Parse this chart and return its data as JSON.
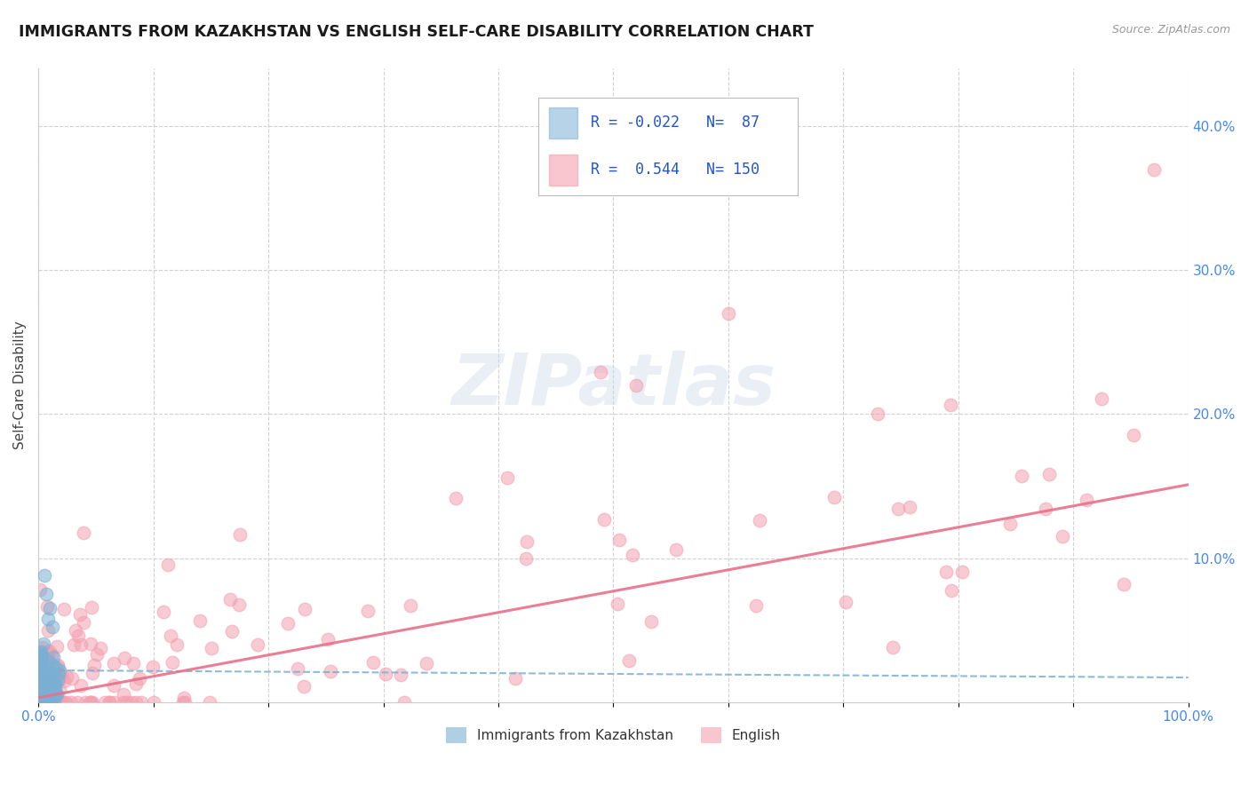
{
  "title": "IMMIGRANTS FROM KAZAKHSTAN VS ENGLISH SELF-CARE DISABILITY CORRELATION CHART",
  "source": "Source: ZipAtlas.com",
  "ylabel": "Self-Care Disability",
  "xlim": [
    0,
    1.0
  ],
  "ylim": [
    0,
    0.44
  ],
  "xticks": [
    0.0,
    0.1,
    0.2,
    0.3,
    0.4,
    0.5,
    0.6,
    0.7,
    0.8,
    0.9,
    1.0
  ],
  "xticklabels": [
    "0.0%",
    "",
    "",
    "",
    "",
    "",
    "",
    "",
    "",
    "",
    "100.0%"
  ],
  "yticks": [
    0.0,
    0.1,
    0.2,
    0.3,
    0.4
  ],
  "yticklabels_right": [
    "",
    "10.0%",
    "20.0%",
    "30.0%",
    "40.0%"
  ],
  "r1": -0.022,
  "n1": 87,
  "r2": 0.544,
  "n2": 150,
  "blue_color": "#7BAFD4",
  "pink_color": "#F4A0B0",
  "blue_line_color": "#7BAFD4",
  "pink_line_color": "#E8708A",
  "watermark_color": "#C8D8E8",
  "background_color": "#FFFFFF",
  "legend_label1": "Immigrants from Kazakhstan",
  "legend_label2": "English",
  "tick_color": "#4488EE",
  "pink_trend_intercept": 0.003,
  "pink_trend_slope": 0.148,
  "blue_trend_intercept": 0.022,
  "blue_trend_slope": -0.005
}
